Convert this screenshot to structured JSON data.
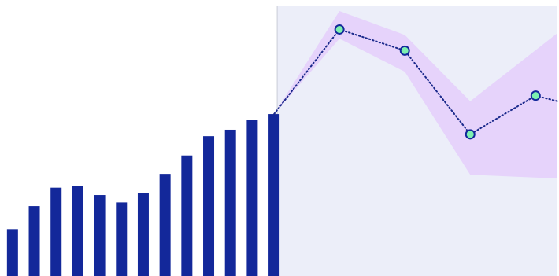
{
  "colors": {
    "bar": "#13289a",
    "forecast_region_bg": "#eceef9",
    "forecast_region_border": "#c9ccd6",
    "band_fill": "#e6d3fb",
    "forecast_line": "#1b2a8c",
    "marker_fill": "#7df0b0",
    "marker_stroke": "#13289a",
    "background": "#ffffff"
  },
  "chart_data": {
    "type": "bar",
    "grid": false,
    "legend": "none",
    "xlabel": "",
    "ylabel": "",
    "title": "",
    "ylim": [
      0,
      300
    ],
    "xlim": [
      0.5,
      26
    ],
    "history": {
      "x": [
        1,
        2,
        3,
        4,
        5,
        6,
        7,
        8,
        9,
        10,
        11,
        12,
        13
      ],
      "values": [
        51,
        76,
        96,
        98,
        88,
        80,
        90,
        111,
        131,
        152,
        159,
        170,
        176
      ]
    },
    "forecast": {
      "x": [
        13,
        16,
        19,
        22,
        25,
        26
      ],
      "values": [
        176,
        268,
        245,
        154,
        196,
        190
      ],
      "marker_x": [
        16,
        19,
        22,
        25
      ]
    },
    "band": {
      "x": [
        13,
        16,
        19,
        22,
        26
      ],
      "upper": [
        176,
        288,
        262,
        190,
        264
      ],
      "lower": [
        176,
        258,
        222,
        110,
        106
      ]
    }
  }
}
